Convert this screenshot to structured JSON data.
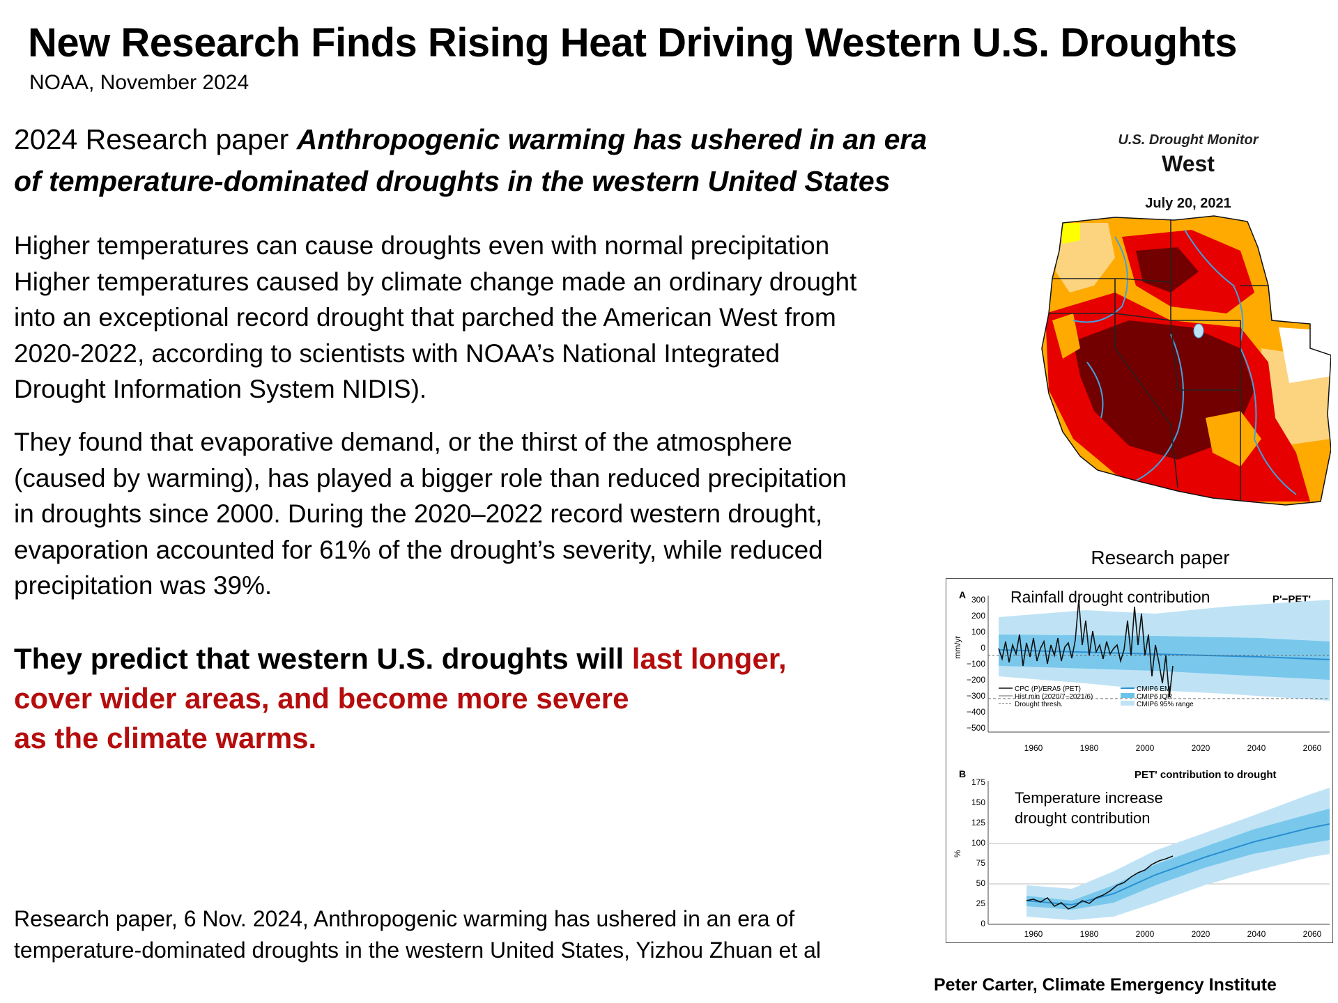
{
  "header": {
    "title": "New Research Finds Rising Heat Driving Western U.S. Droughts",
    "subtitle": "NOAA, November 2024"
  },
  "paper_heading": {
    "prefix": "2024 Research paper ",
    "line1_em": "Anthropogenic warming has ushered in  an era",
    "line2_em": "of temperature-dominated droughts in the western United States"
  },
  "body": {
    "para1": [
      "Higher temperatures can cause droughts even with normal precipitation",
      "Higher temperatures caused by climate change made an ordinary drought",
      "into an exceptional record drought that parched the American West from",
      "2020-2022, according to scientists with NOAA’s National Integrated",
      "Drought Information System NIDIS)."
    ],
    "para2": [
      "They found that evaporative demand, or the thirst of the atmosphere",
      "(caused by warming), has played a bigger role than reduced precipitation",
      "in droughts since 2000. During the 2020–2022 record western drought,",
      "evaporation accounted for 61% of the drought’s severity, while reduced",
      "precipitation was 39%."
    ]
  },
  "prediction": {
    "black": "They predict that western U.S. droughts will ",
    "red_line1": "last longer,",
    "red_line2": "cover wider areas, and become more severe",
    "red_line3": "as the climate warms."
  },
  "footnote": {
    "line1": "Research paper, 6 Nov. 2024, Anthropogenic warming has ushered in an era of",
    "line2": "temperature-dominated droughts in the western United States,  Yizhou Zhuan et al"
  },
  "credit": "Peter Carter,  Climate Emergency Institute",
  "drought_monitor": {
    "title": "U.S. Drought Monitor",
    "region": "West",
    "date": "July 20, 2021"
  },
  "research_figure": {
    "label": "Research paper",
    "panel_a": {
      "letter": "A",
      "annotation": "Rainfall drought contribution",
      "corner_label": "P'−PET'",
      "ylabel": "mm/yr",
      "yticks": [
        "300",
        "200",
        "100",
        "0",
        "−100",
        "−200",
        "−300",
        "−400",
        "−500"
      ],
      "xticks": [
        "1960",
        "1980",
        "2000",
        "2020",
        "2040",
        "2060"
      ],
      "legend": [
        "CPC (P)/ERA5 (PET)",
        "Hist min (2020/7–2021/6)",
        "Drought thresh.",
        "CMIP6 EM",
        "CMIP6 IQR",
        "CMIP6 95% range"
      ]
    },
    "panel_b": {
      "letter": "B",
      "title": "PET' contribution to drought",
      "annotation_line1": "Temperature increase",
      "annotation_line2": "drought contribution",
      "ylabel": "%",
      "yticks": [
        "175",
        "150",
        "125",
        "100",
        "75",
        "50",
        "25",
        "0"
      ],
      "xticks": [
        "1960",
        "1980",
        "2000",
        "2020",
        "2040",
        "2060"
      ]
    }
  },
  "colors": {
    "red_text": "#b50d0d",
    "dm_d0": "#ffff00",
    "dm_d1": "#fcd37f",
    "dm_d2": "#ffaa00",
    "dm_d3": "#e60000",
    "dm_d4": "#730000",
    "cmip_range": "#bfe3f5",
    "cmip_iqr": "#6cc3ea",
    "cmip_em": "#2a8fd0"
  }
}
